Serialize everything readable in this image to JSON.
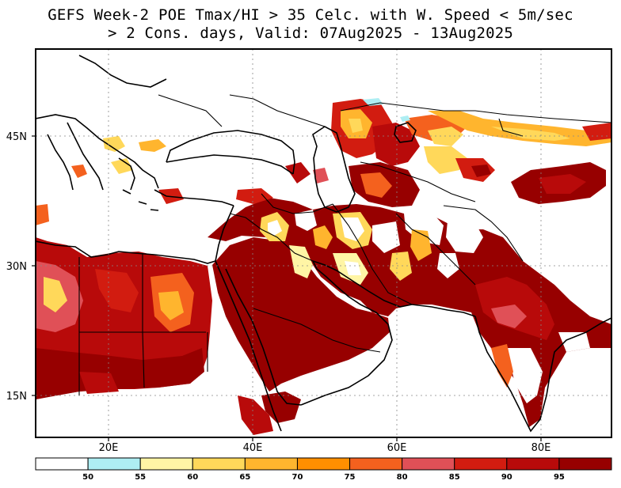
{
  "title": {
    "line1": "GEFS Week-2 POE Tmax/HI > 35 Celc. with W. Speed < 5m/sec",
    "line2": "> 2 Cons. days, Valid: 07Aug2025 - 13Aug2025"
  },
  "axes": {
    "lat_ticks": [
      {
        "value": 45,
        "label": "45N"
      },
      {
        "value": 30,
        "label": "30N"
      },
      {
        "value": 15,
        "label": "15N"
      }
    ],
    "lon_ticks": [
      {
        "value": 20,
        "label": "20E"
      },
      {
        "value": 40,
        "label": "40E"
      },
      {
        "value": 60,
        "label": "60E"
      },
      {
        "value": 80,
        "label": "80E"
      }
    ],
    "lon_range": [
      10,
      90
    ],
    "lat_range": [
      10,
      55
    ]
  },
  "colorbar": {
    "colors": [
      "#ffffff",
      "#aeeef3",
      "#fff5a5",
      "#ffd85a",
      "#ffb52e",
      "#ff8f00",
      "#f4611e",
      "#e05057",
      "#d21c10",
      "#b80a0a",
      "#970000"
    ],
    "labels": [
      "50",
      "55",
      "60",
      "65",
      "70",
      "75",
      "80",
      "85",
      "90",
      "95"
    ]
  }
}
